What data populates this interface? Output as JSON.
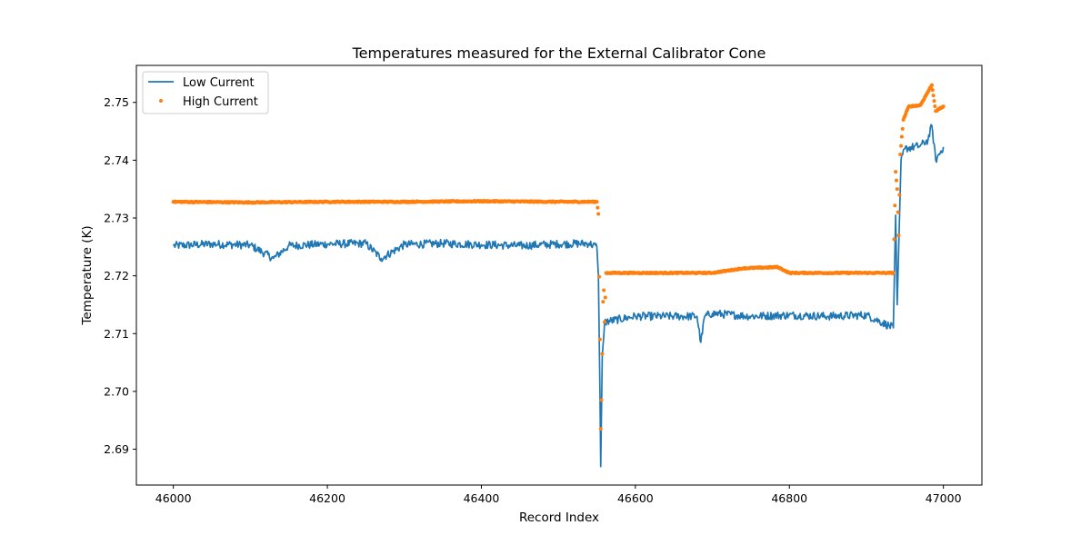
{
  "chart_data": {
    "type": "line",
    "title": "Temperatures measured for the External Calibrator Cone",
    "xlabel": "Record Index",
    "ylabel": "Temperature (K)",
    "xlim": [
      45952,
      47050
    ],
    "ylim": [
      2.6838,
      2.7564
    ],
    "xticks": [
      46000,
      46200,
      46400,
      46600,
      46800,
      47000
    ],
    "yticks": [
      2.69,
      2.7,
      2.71,
      2.72,
      2.73,
      2.74,
      2.75
    ],
    "ytick_labels": [
      "2.69",
      "2.70",
      "2.71",
      "2.72",
      "2.73",
      "2.74",
      "2.75"
    ],
    "grid": false,
    "legend_position": "upper left",
    "series": [
      {
        "name": "Low Current",
        "type": "line",
        "color": "#1f77b4",
        "points": [
          [
            46000,
            2.7252
          ],
          [
            46050,
            2.7255
          ],
          [
            46100,
            2.7253
          ],
          [
            46130,
            2.723
          ],
          [
            46150,
            2.7252
          ],
          [
            46200,
            2.7255
          ],
          [
            46250,
            2.7256
          ],
          [
            46270,
            2.723
          ],
          [
            46300,
            2.7254
          ],
          [
            46350,
            2.7256
          ],
          [
            46400,
            2.7254
          ],
          [
            46450,
            2.7252
          ],
          [
            46500,
            2.7255
          ],
          [
            46540,
            2.7256
          ],
          [
            46550,
            2.725
          ],
          [
            46552,
            2.72
          ],
          [
            46554,
            2.7
          ],
          [
            46555,
            2.687
          ],
          [
            46557,
            2.706
          ],
          [
            46560,
            2.712
          ],
          [
            46600,
            2.713
          ],
          [
            46650,
            2.713
          ],
          [
            46680,
            2.713
          ],
          [
            46685,
            2.7085
          ],
          [
            46690,
            2.713
          ],
          [
            46700,
            2.7135
          ],
          [
            46750,
            2.713
          ],
          [
            46800,
            2.7132
          ],
          [
            46850,
            2.713
          ],
          [
            46900,
            2.7132
          ],
          [
            46935,
            2.711
          ],
          [
            46938,
            2.7305
          ],
          [
            46940,
            2.715
          ],
          [
            46945,
            2.74
          ],
          [
            46950,
            2.742
          ],
          [
            46970,
            2.7425
          ],
          [
            46980,
            2.7435
          ],
          [
            46985,
            2.746
          ],
          [
            46990,
            2.74
          ],
          [
            47000,
            2.7423
          ]
        ]
      },
      {
        "name": "High Current",
        "type": "scatter",
        "color": "#ff7f0e",
        "points": [
          [
            46000,
            2.7328
          ],
          [
            46100,
            2.7327
          ],
          [
            46200,
            2.7328
          ],
          [
            46300,
            2.7328
          ],
          [
            46400,
            2.7329
          ],
          [
            46500,
            2.7328
          ],
          [
            46550,
            2.7328
          ],
          [
            46552,
            2.7307
          ],
          [
            46554,
            2.709
          ],
          [
            46555,
            2.6935
          ],
          [
            46556,
            2.6985
          ],
          [
            46557,
            2.7065
          ],
          [
            46558,
            2.7155
          ],
          [
            46559,
            2.7175
          ],
          [
            46560,
            2.712
          ],
          [
            46562,
            2.7205
          ],
          [
            46600,
            2.7205
          ],
          [
            46700,
            2.7205
          ],
          [
            46740,
            2.7213
          ],
          [
            46785,
            2.7215
          ],
          [
            46800,
            2.7205
          ],
          [
            46900,
            2.7205
          ],
          [
            46935,
            2.7205
          ],
          [
            46938,
            2.738
          ],
          [
            46940,
            2.735
          ],
          [
            46942,
            2.727
          ],
          [
            46944,
            2.741
          ],
          [
            46948,
            2.747
          ],
          [
            46955,
            2.7493
          ],
          [
            46970,
            2.7495
          ],
          [
            46985,
            2.753
          ],
          [
            46990,
            2.7485
          ],
          [
            47000,
            2.7493
          ]
        ]
      }
    ]
  }
}
